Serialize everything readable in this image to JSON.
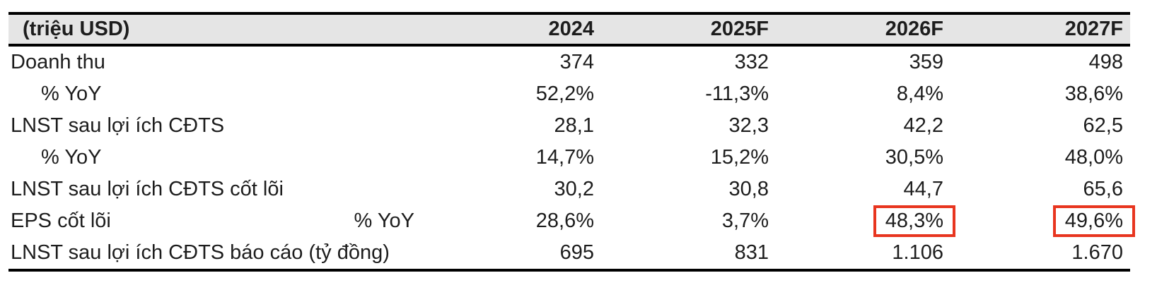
{
  "styles": {
    "header_bg": "#e5e5e5",
    "rule_color": "#000000",
    "text_color": "#1d1d1d",
    "highlight_red": "#e8351f"
  },
  "chart_data": {
    "type": "table",
    "unit_label": "(triệu USD)",
    "columns": [
      "2024",
      "2025F",
      "2026F",
      "2027F"
    ],
    "rows": [
      {
        "label": "Doanh thu",
        "indent": false,
        "values": [
          "374",
          "332",
          "359",
          "498"
        ]
      },
      {
        "label": "% YoY",
        "indent": true,
        "values": [
          "52,2%",
          "-11,3%",
          "8,4%",
          "38,6%"
        ]
      },
      {
        "label": "LNST sau lợi ích CĐTS",
        "indent": false,
        "values": [
          "28,1",
          "32,3",
          "42,2",
          "62,5"
        ]
      },
      {
        "label": "% YoY",
        "indent": true,
        "values": [
          "14,7%",
          "15,2%",
          "30,5%",
          "48,0%"
        ]
      },
      {
        "label": "LNST sau lợi ích CĐTS cốt lõi",
        "indent": false,
        "values": [
          "30,2",
          "30,8",
          "44,7",
          "65,6"
        ]
      },
      {
        "label": "EPS cốt lõi",
        "sublabel": "% YoY",
        "indent": false,
        "values": [
          "28,6%",
          "3,7%",
          "48,3%",
          "49,6%"
        ],
        "highlighted_columns": [
          "2026F",
          "2027F"
        ],
        "highlight_style": "red outline box"
      },
      {
        "label": "LNST sau lợi ích CĐTS báo cáo (tỷ đồng)",
        "indent": false,
        "values": [
          "695",
          "831",
          "1.106",
          "1.670"
        ]
      }
    ]
  }
}
